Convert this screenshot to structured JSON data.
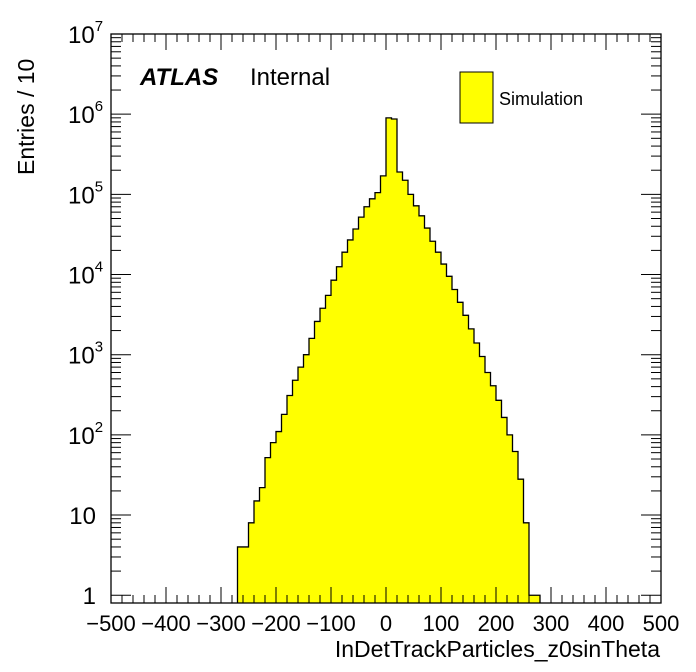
{
  "chart_data": {
    "type": "bar",
    "subtype": "histogram",
    "title": "",
    "xlabel": "InDetTrackParticles_z0sinTheta",
    "ylabel": "Entries / 10",
    "xlim": [
      -500,
      500
    ],
    "ylim": [
      0.8,
      10000000
    ],
    "yscale": "log",
    "grid": false,
    "legend_position": "top-right",
    "fill_color": "#ffff00",
    "line_color": "#000000",
    "x_ticks": [
      "−500",
      "−400",
      "−300",
      "−200",
      "−100",
      "0",
      "100",
      "200",
      "300",
      "400",
      "500"
    ],
    "y_ticks": [
      {
        "value": 1,
        "base": "1",
        "exp": ""
      },
      {
        "value": 10,
        "base": "10",
        "exp": ""
      },
      {
        "value": 100,
        "base": "10",
        "exp": "2"
      },
      {
        "value": 1000,
        "base": "10",
        "exp": "3"
      },
      {
        "value": 10000,
        "base": "10",
        "exp": "4"
      },
      {
        "value": 100000,
        "base": "10",
        "exp": "5"
      },
      {
        "value": 1000000,
        "base": "10",
        "exp": "6"
      },
      {
        "value": 10000000,
        "base": "10",
        "exp": "7"
      }
    ],
    "series": [
      {
        "name": "Simulation",
        "x": [
          -270,
          -260,
          -250,
          -240,
          -230,
          -220,
          -210,
          -200,
          -190,
          -180,
          -170,
          -160,
          -150,
          -140,
          -130,
          -120,
          -110,
          -100,
          -90,
          -80,
          -70,
          -60,
          -50,
          -40,
          -30,
          -20,
          -10,
          0,
          10,
          20,
          30,
          40,
          50,
          60,
          70,
          80,
          90,
          100,
          110,
          120,
          130,
          140,
          150,
          160,
          170,
          180,
          190,
          200,
          210,
          220,
          230,
          240,
          250,
          260,
          270
        ],
        "values": [
          4,
          4,
          8,
          15,
          22,
          52,
          80,
          110,
          180,
          310,
          480,
          700,
          1000,
          1600,
          2600,
          3800,
          5500,
          8500,
          12500,
          19000,
          27000,
          37000,
          52000,
          70000,
          88000,
          105000,
          170000,
          900000,
          870000,
          190000,
          150000,
          100000,
          72000,
          54000,
          38000,
          26000,
          19000,
          13500,
          9500,
          6500,
          4500,
          3100,
          2100,
          1400,
          950,
          600,
          410,
          270,
          165,
          100,
          62,
          28,
          8,
          1,
          1
        ]
      }
    ],
    "bin_width": 10
  },
  "annotation": {
    "atlas": "ATLAS",
    "internal": "Internal"
  },
  "legend": {
    "label": "Simulation"
  }
}
